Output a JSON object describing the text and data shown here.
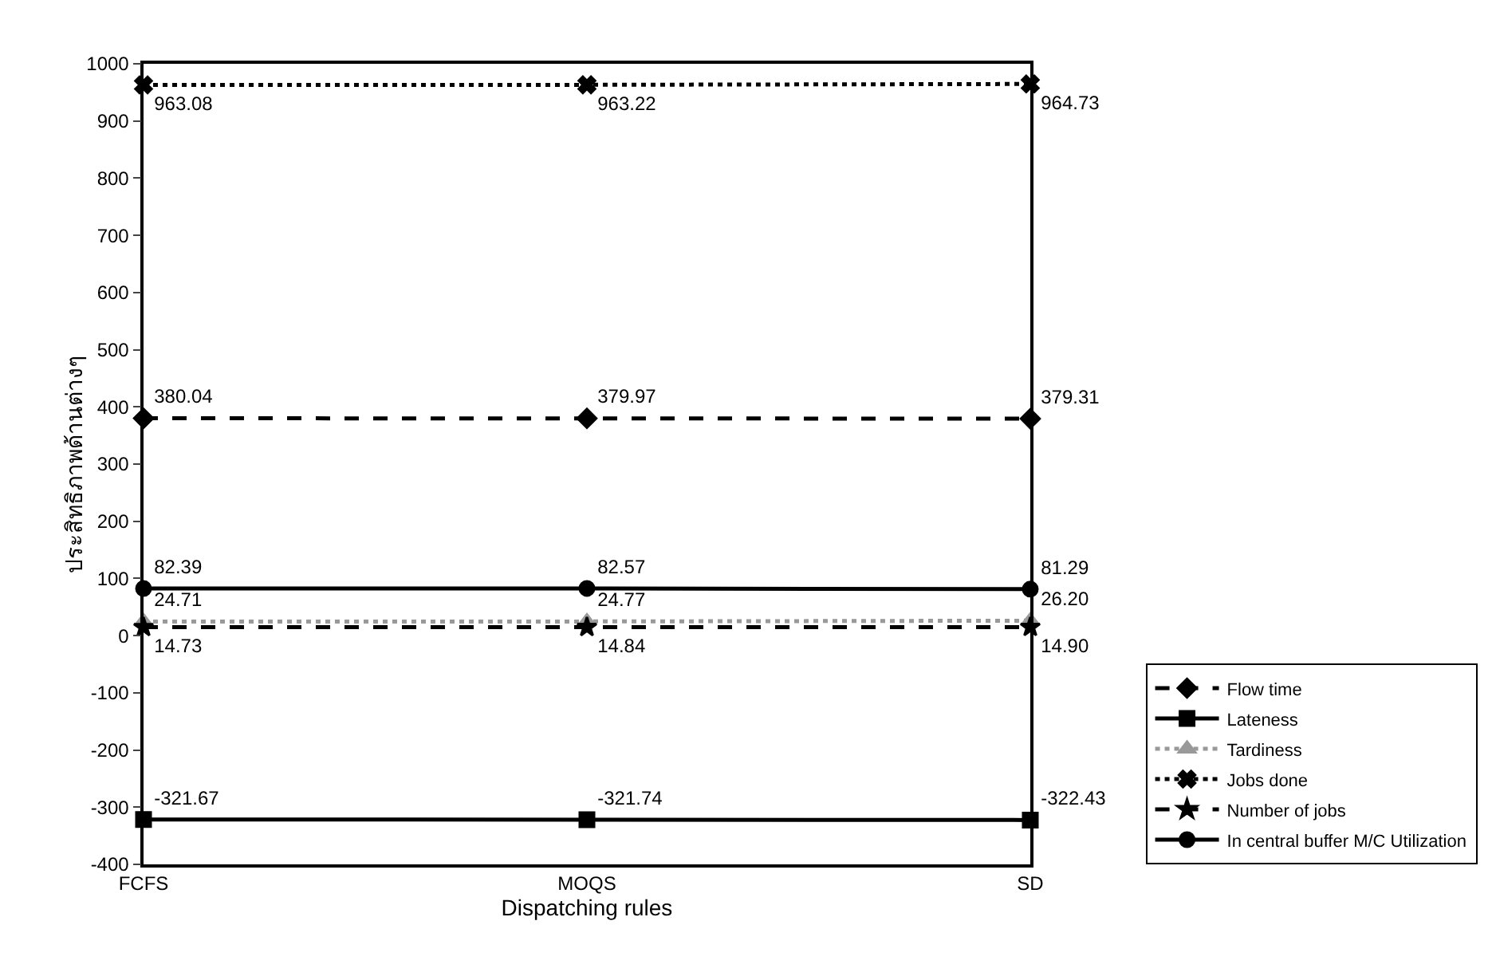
{
  "chart_data": {
    "type": "line",
    "xlabel": "Dispatching rules",
    "ylabel": "ประสิทธิภาพด้านต่างๆ",
    "categories": [
      "FCFS",
      "MOQS",
      "SD"
    ],
    "ylim": [
      -400,
      1000
    ],
    "yticks": [
      -400,
      -300,
      -200,
      -100,
      0,
      100,
      200,
      300,
      400,
      500,
      600,
      700,
      800,
      900,
      1000
    ],
    "grid": false,
    "legend": "bottom right",
    "series": [
      {
        "name": "Flow time",
        "color": "#000000",
        "values": [
          380.04,
          379.97,
          379.31
        ],
        "value_labels": [
          "380.04",
          "379.97",
          "379.31"
        ],
        "marker": "diamond",
        "line_style": "dashed"
      },
      {
        "name": "Lateness",
        "color": "#000000",
        "values": [
          -321.67,
          -321.74,
          -322.43
        ],
        "value_labels": [
          "-321.67",
          "-321.74",
          "-322.43"
        ],
        "marker": "square",
        "line_style": "solid"
      },
      {
        "name": "Tardiness",
        "color": "#999999",
        "values": [
          24.71,
          24.77,
          26.2
        ],
        "value_labels": [
          "24.71",
          "24.77",
          "26.20"
        ],
        "marker": "triangle",
        "line_style": "dotted"
      },
      {
        "name": "Jobs done",
        "color": "#000000",
        "values": [
          963.08,
          963.22,
          964.73
        ],
        "value_labels": [
          "963.08",
          "963.22",
          "964.73"
        ],
        "marker": "cross",
        "line_style": "dotted"
      },
      {
        "name": "Number of jobs",
        "color": "#000000",
        "values": [
          14.73,
          14.84,
          14.9
        ],
        "value_labels": [
          "14.73",
          "14.84",
          "14.90"
        ],
        "marker": "star",
        "line_style": "dashed"
      },
      {
        "name": "In central buffer M/C Utilization",
        "color": "#000000",
        "values": [
          82.39,
          82.57,
          81.29
        ],
        "value_labels": [
          "82.39",
          "82.57",
          "81.29"
        ],
        "marker": "circle",
        "line_style": "solid"
      }
    ]
  }
}
